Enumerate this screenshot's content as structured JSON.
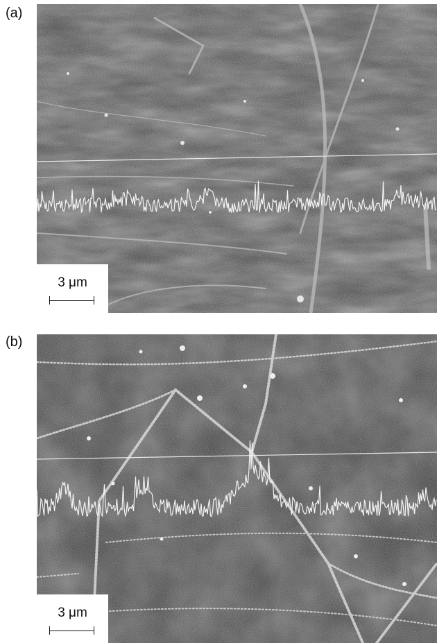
{
  "panels": [
    {
      "label": "(a)",
      "scale_label": "3 μm"
    },
    {
      "label": "(b)",
      "scale_label": "3 μm"
    }
  ],
  "colors": {
    "background": "#ffffff",
    "micrograph_dark": "#3a3a3a",
    "trace": "#f4f4f4"
  }
}
